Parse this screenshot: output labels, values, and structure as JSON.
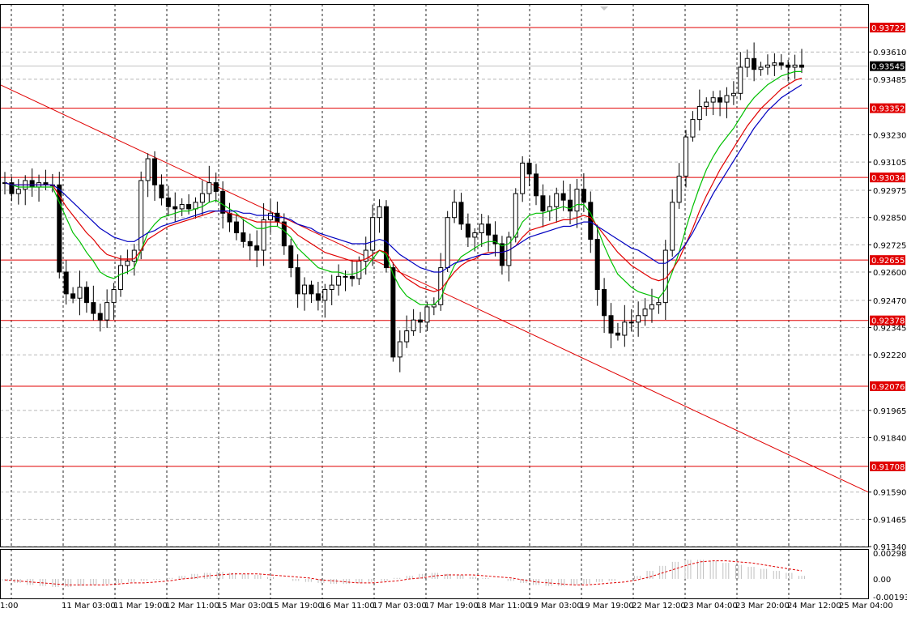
{
  "chart_data": [
    {
      "type": "line",
      "subtype": "candlestick-with-moving-averages",
      "title": "",
      "xlabel": "",
      "ylabel": "",
      "ylim": [
        0.9134,
        0.9383
      ],
      "grid": true,
      "current_price": "0.93545",
      "x_tick_labels": [
        "1:00",
        "11 Mar 03:00",
        "11 Mar 19:00",
        "12 Mar 11:00",
        "15 Mar 03:00",
        "15 Mar 19:00",
        "16 Mar 11:00",
        "17 Mar 03:00",
        "17 Mar 19:00",
        "18 Mar 11:00",
        "19 Mar 03:00",
        "19 Mar 19:00",
        "22 Mar 12:00",
        "23 Mar 04:00",
        "23 Mar 20:00",
        "24 Mar 12:00",
        "25 Mar 04:00"
      ],
      "y_tick_labels": [
        "0.93610",
        "0.93485",
        "0.93230",
        "0.93105",
        "0.92975",
        "0.92850",
        "0.92725",
        "0.92600",
        "0.92470",
        "0.92345",
        "0.92220",
        "0.91965",
        "0.91840",
        "0.91590",
        "0.91465",
        "0.91340"
      ],
      "horizontal_levels": [
        "0.93722",
        "0.93352",
        "0.93034",
        "0.92655",
        "0.92378",
        "0.92076",
        "0.91708"
      ],
      "trendline": {
        "start": 0.9346,
        "end": 0.9159
      },
      "close_prices": [
        0.9301,
        0.9296,
        0.9298,
        0.9302,
        0.9299,
        0.9301,
        0.93,
        0.93,
        0.926,
        0.925,
        0.9248,
        0.9253,
        0.9246,
        0.9241,
        0.9238,
        0.9246,
        0.9252,
        0.9263,
        0.9265,
        0.927,
        0.9302,
        0.9312,
        0.93,
        0.9294,
        0.929,
        0.9289,
        0.9291,
        0.9289,
        0.9292,
        0.9296,
        0.9301,
        0.9297,
        0.9287,
        0.9283,
        0.9278,
        0.9274,
        0.9272,
        0.927,
        0.9284,
        0.9287,
        0.9283,
        0.9272,
        0.9262,
        0.925,
        0.9254,
        0.925,
        0.9247,
        0.9252,
        0.9254,
        0.9258,
        0.9258,
        0.9257,
        0.9265,
        0.927,
        0.9285,
        0.929,
        0.9262,
        0.9221,
        0.9228,
        0.9233,
        0.9238,
        0.9237,
        0.9244,
        0.9245,
        0.9262,
        0.9285,
        0.9292,
        0.9282,
        0.9276,
        0.9278,
        0.9282,
        0.9277,
        0.9273,
        0.9263,
        0.9276,
        0.9296,
        0.931,
        0.9305,
        0.9295,
        0.9288,
        0.929,
        0.9296,
        0.9293,
        0.9288,
        0.9298,
        0.9292,
        0.9275,
        0.9252,
        0.924,
        0.9232,
        0.9231,
        0.9237,
        0.9237,
        0.924,
        0.9243,
        0.9245,
        0.9246,
        0.927,
        0.9292,
        0.9304,
        0.9322,
        0.933,
        0.9336,
        0.9338,
        0.934,
        0.9338,
        0.9341,
        0.9342,
        0.9354,
        0.9358,
        0.9353,
        0.9354,
        0.9355,
        0.9356,
        0.9355,
        0.9354,
        0.9355,
        0.9354
      ],
      "series": [
        {
          "name": "",
          "color": "#00c000",
          "values": [
            0.9301,
            0.93,
            0.9299,
            0.9299,
            0.9299,
            0.9299,
            0.9299,
            0.9299,
            0.9292,
            0.9285,
            0.9278,
            0.9274,
            0.9269,
            0.9265,
            0.926,
            0.9258,
            0.9257,
            0.9259,
            0.926,
            0.9262,
            0.927,
            0.9278,
            0.9282,
            0.9285,
            0.9286,
            0.9287,
            0.9288,
            0.9288,
            0.9289,
            0.929,
            0.9292,
            0.9293,
            0.9291,
            0.9289,
            0.9287,
            0.9284,
            0.9282,
            0.928,
            0.928,
            0.9281,
            0.9281,
            0.9279,
            0.9276,
            0.9271,
            0.9268,
            0.9265,
            0.9262,
            0.9261,
            0.926,
            0.926,
            0.9259,
            0.9259,
            0.926,
            0.9262,
            0.9266,
            0.927,
            0.9268,
            0.9259,
            0.9253,
            0.9249,
            0.9247,
            0.9245,
            0.9245,
            0.9245,
            0.9248,
            0.9256,
            0.9263,
            0.9267,
            0.9269,
            0.9271,
            0.9273,
            0.9274,
            0.9274,
            0.9272,
            0.9273,
            0.9277,
            0.9283,
            0.9286,
            0.9287,
            0.9287,
            0.9288,
            0.9289,
            0.929,
            0.9289,
            0.9291,
            0.9291,
            0.9287,
            0.928,
            0.9272,
            0.9265,
            0.9259,
            0.9256,
            0.9253,
            0.9251,
            0.925,
            0.9249,
            0.9248,
            0.9252,
            0.926,
            0.9269,
            0.928,
            0.929,
            0.9299,
            0.9307,
            0.9313,
            0.9318,
            0.9322,
            0.9326,
            0.9331,
            0.9336,
            0.934,
            0.9343,
            0.9346,
            0.9348,
            0.935,
            0.9351,
            0.9352,
            0.9352
          ]
        },
        {
          "name": "",
          "color": "#e00000",
          "values": [
            0.9301,
            0.93,
            0.93,
            0.93,
            0.93,
            0.93,
            0.93,
            0.93,
            0.9295,
            0.929,
            0.9286,
            0.9282,
            0.9278,
            0.9275,
            0.9271,
            0.9268,
            0.9267,
            0.9266,
            0.9266,
            0.9266,
            0.927,
            0.9275,
            0.9277,
            0.9279,
            0.9281,
            0.9282,
            0.9283,
            0.9284,
            0.9285,
            0.9286,
            0.9287,
            0.9288,
            0.9288,
            0.9287,
            0.9286,
            0.9285,
            0.9284,
            0.9283,
            0.9283,
            0.9283,
            0.9283,
            0.9282,
            0.928,
            0.9277,
            0.9275,
            0.9273,
            0.9271,
            0.9269,
            0.9268,
            0.9267,
            0.9266,
            0.9265,
            0.9265,
            0.9266,
            0.9268,
            0.927,
            0.9269,
            0.9264,
            0.926,
            0.9257,
            0.9255,
            0.9253,
            0.9252,
            0.9251,
            0.9252,
            0.9256,
            0.926,
            0.9263,
            0.9265,
            0.9266,
            0.9268,
            0.9269,
            0.9269,
            0.9269,
            0.927,
            0.9272,
            0.9276,
            0.9279,
            0.928,
            0.9281,
            0.9282,
            0.9283,
            0.9284,
            0.9284,
            0.9285,
            0.9286,
            0.9285,
            0.9281,
            0.9277,
            0.9273,
            0.9269,
            0.9266,
            0.9263,
            0.9261,
            0.9259,
            0.9257,
            0.9256,
            0.9257,
            0.9261,
            0.9266,
            0.9273,
            0.928,
            0.9288,
            0.9295,
            0.9301,
            0.9307,
            0.9312,
            0.9317,
            0.9322,
            0.9327,
            0.9331,
            0.9335,
            0.9338,
            0.9341,
            0.9344,
            0.9346,
            0.9348,
            0.9349
          ]
        },
        {
          "name": "",
          "color": "#0000c0",
          "values": [
            0.9301,
            0.93,
            0.93,
            0.93,
            0.93,
            0.93,
            0.93,
            0.93,
            0.9298,
            0.9295,
            0.9292,
            0.9289,
            0.9286,
            0.9283,
            0.928,
            0.9278,
            0.9276,
            0.9275,
            0.9274,
            0.9274,
            0.9276,
            0.9278,
            0.9279,
            0.9281,
            0.9282,
            0.9283,
            0.9284,
            0.9285,
            0.9286,
            0.9287,
            0.9288,
            0.9288,
            0.9288,
            0.9288,
            0.9288,
            0.9287,
            0.9287,
            0.9286,
            0.9286,
            0.9286,
            0.9285,
            0.9285,
            0.9284,
            0.9282,
            0.9281,
            0.928,
            0.9278,
            0.9277,
            0.9276,
            0.9275,
            0.9274,
            0.9273,
            0.9273,
            0.9273,
            0.9274,
            0.9275,
            0.9274,
            0.9271,
            0.9268,
            0.9266,
            0.9264,
            0.9262,
            0.9261,
            0.926,
            0.926,
            0.9262,
            0.9264,
            0.9265,
            0.9266,
            0.9267,
            0.9268,
            0.9268,
            0.9269,
            0.9269,
            0.927,
            0.9272,
            0.9274,
            0.9276,
            0.9277,
            0.9278,
            0.9279,
            0.928,
            0.9281,
            0.9281,
            0.9282,
            0.9283,
            0.9283,
            0.9281,
            0.9279,
            0.9277,
            0.9275,
            0.9273,
            0.9271,
            0.927,
            0.9268,
            0.9266,
            0.9264,
            0.9264,
            0.9266,
            0.9269,
            0.9273,
            0.9278,
            0.9284,
            0.929,
            0.9296,
            0.9301,
            0.9306,
            0.9311,
            0.9316,
            0.9321,
            0.9326,
            0.933,
            0.9334,
            0.9337,
            0.934,
            0.9342,
            0.9344,
            0.9346
          ]
        }
      ]
    },
    {
      "type": "bar",
      "title": "",
      "y_tick_labels": [
        "0.002981",
        "0.00",
        "-0.001939"
      ],
      "ylim": [
        -0.001939,
        0.002981
      ],
      "values": [
        -0.0002,
        -0.0004,
        -0.0006,
        -0.0007,
        -0.0008,
        -0.0008,
        -0.0007,
        -0.0006,
        -0.0005,
        -0.0004,
        -0.0003,
        -0.0002,
        -0.0001,
        0.0001,
        0.0003,
        0.0005,
        0.0006,
        0.0007,
        0.0006,
        0.0005,
        0.0004,
        0.0002,
        0.0,
        -0.0002,
        -0.0003,
        -0.0004,
        -0.0005,
        -0.0005,
        -0.0004,
        -0.0003,
        -0.0002,
        0.0001,
        0.0003,
        0.0005,
        0.0006,
        0.0005,
        0.0004,
        0.0002,
        0.0001,
        0.0,
        -0.0002,
        -0.0004,
        -0.0006,
        -0.0007,
        -0.0007,
        -0.0006,
        -0.0005,
        -0.0003,
        -0.0002,
        0.0,
        0.0003,
        0.0008,
        0.0013,
        0.0017,
        0.0019,
        0.0019,
        0.0018,
        0.0016,
        0.0014,
        0.0012,
        0.001,
        0.0008,
        0.0006,
        0.0003
      ],
      "signal": [
        -0.0001,
        -0.0002,
        -0.0003,
        -0.0004,
        -0.0005,
        -0.0006,
        -0.0006,
        -0.0006,
        -0.0006,
        -0.0005,
        -0.0004,
        -0.0004,
        -0.0003,
        -0.0002,
        0.0,
        0.0001,
        0.0003,
        0.0004,
        0.0005,
        0.0005,
        0.0005,
        0.0004,
        0.0003,
        0.0002,
        0.0001,
        -0.0001,
        -0.0002,
        -0.0003,
        -0.0004,
        -0.0004,
        -0.0003,
        -0.0002,
        0.0,
        0.0001,
        0.0003,
        0.0004,
        0.0004,
        0.0004,
        0.0003,
        0.0002,
        0.0001,
        -0.0001,
        -0.0003,
        -0.0004,
        -0.0005,
        -0.0006,
        -0.0006,
        -0.0005,
        -0.0004,
        -0.0003,
        -0.0001,
        0.0002,
        0.0006,
        0.001,
        0.0014,
        0.0017,
        0.0018,
        0.0018,
        0.0017,
        0.0016,
        0.0014,
        0.0012,
        0.001,
        0.0008
      ]
    }
  ]
}
